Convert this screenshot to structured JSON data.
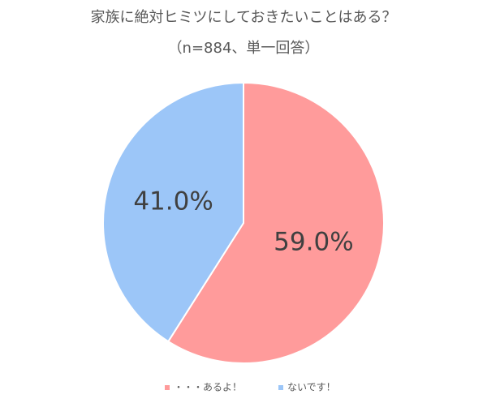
{
  "chart_data": {
    "type": "pie",
    "title": "家族に絶対ヒミツにしておきたいことはある？",
    "subtitle": "（n=884、単一回答）",
    "categories": [
      "・・・あるよ！",
      "ないです！"
    ],
    "values": [
      59.0,
      41.0
    ],
    "value_labels": [
      "59.0%",
      "41.0%"
    ],
    "colors": [
      "#ff9b9b",
      "#9cc6f8"
    ],
    "legend": "bottom"
  }
}
